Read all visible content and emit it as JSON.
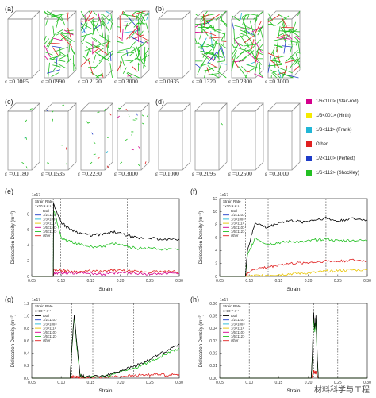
{
  "top_panels": [
    {
      "letter": "(a)",
      "strains": [
        "ε =0.0865",
        "ε =0.0990",
        "ε =0.2120",
        "ε =0.3000"
      ]
    },
    {
      "letter": "(b)",
      "strains": [
        "ε =0.0935",
        "ε =0.1320",
        "ε =0.2300",
        "ε =0.3000"
      ]
    },
    {
      "letter": "(c)",
      "strains": [
        "ε =0.1180",
        "ε =0.1535",
        "ε =0.2230",
        "ε =0.3000"
      ]
    },
    {
      "letter": "(d)",
      "strains": [
        "ε =0.1000",
        "ε =0.2095",
        "ε =0.2500",
        "ε =0.3000"
      ]
    }
  ],
  "dislocation_legend": [
    {
      "label": "1/6<110> (Stair-rod)",
      "color": "#d4008c"
    },
    {
      "label": "1/3<001> (Hirth)",
      "color": "#f5ea00"
    },
    {
      "label": "1/3<111> (Frank)",
      "color": "#21b6d6"
    },
    {
      "label": "Other",
      "color": "#e02020"
    },
    {
      "label": "1/2<110> (Perfect)",
      "color": "#1e3cc8"
    },
    {
      "label": "1/6<112> (Shockley)",
      "color": "#22c022"
    }
  ],
  "charts_common": {
    "multiplier": "1e17",
    "ylabel": "Dislocation Density (m⁻²)",
    "xlabel": "Strain",
    "legend_title": "Strain Rate",
    "legend_subtitle": "1×10⁻⁸ s⁻¹",
    "series_names": [
      "total",
      "1/2<110>",
      "1/3<100>",
      "1/3<111>",
      "1/6<110>",
      "1/6<112>",
      "other"
    ],
    "series_colors": [
      "#000000",
      "#1e3cc8",
      "#21b6d6",
      "#e8c400",
      "#d4008c",
      "#22c022",
      "#e02020"
    ]
  },
  "chart_data": [
    {
      "type": "line",
      "letter": "(e)",
      "xlim": [
        0.05,
        0.3
      ],
      "ylim": [
        0,
        10
      ],
      "yticks": [
        "0",
        "2",
        "4",
        "6",
        "8"
      ],
      "xticks": [
        "0.05",
        "0.10",
        "0.15",
        "0.20",
        "0.25",
        "0.30"
      ],
      "vlines": [
        0.0865,
        0.099,
        0.212
      ],
      "x": [
        0.05,
        0.0865,
        0.087,
        0.1,
        0.11,
        0.13,
        0.15,
        0.17,
        0.19,
        0.21,
        0.23,
        0.25,
        0.27,
        0.3
      ],
      "series": [
        {
          "name": "total",
          "values": [
            0,
            0,
            9.3,
            7.0,
            6.3,
            5.6,
            5.3,
            5.4,
            5.7,
            5.3,
            4.9,
            5.0,
            4.7,
            4.8
          ]
        },
        {
          "name": "1/6<112>",
          "values": [
            0,
            0,
            8.6,
            5.0,
            4.6,
            4.2,
            3.8,
            3.9,
            4.2,
            3.9,
            3.6,
            3.7,
            3.5,
            3.5
          ]
        },
        {
          "name": "other",
          "values": [
            0,
            0,
            0.9,
            0.8,
            0.7,
            0.6,
            0.7,
            0.6,
            0.8,
            0.7,
            0.6,
            0.6,
            0.6,
            0.6
          ]
        },
        {
          "name": "1/6<110>",
          "values": [
            0,
            0,
            0.3,
            0.5,
            0.4,
            0.5,
            0.4,
            0.3,
            0.4,
            0.5,
            0.4,
            0.3,
            0.4,
            0.4
          ]
        }
      ]
    },
    {
      "type": "line",
      "letter": "(f)",
      "xlim": [
        0.05,
        0.3
      ],
      "ylim": [
        0,
        12
      ],
      "yticks": [
        "0",
        "2",
        "4",
        "6",
        "8",
        "10",
        "12"
      ],
      "xticks": [
        "0.05",
        "0.10",
        "0.15",
        "0.20",
        "0.25",
        "0.30"
      ],
      "vlines": [
        0.0935,
        0.132,
        0.23
      ],
      "x": [
        0.05,
        0.0935,
        0.097,
        0.11,
        0.13,
        0.15,
        0.17,
        0.19,
        0.21,
        0.23,
        0.25,
        0.27,
        0.3
      ],
      "series": [
        {
          "name": "total",
          "values": [
            0,
            0,
            4.0,
            8.3,
            7.5,
            8.3,
            8.6,
            8.4,
            8.7,
            9.0,
            8.5,
            8.9,
            8.7
          ]
        },
        {
          "name": "1/6<112>",
          "values": [
            0,
            0,
            3.2,
            6.0,
            5.0,
            5.2,
            5.4,
            5.3,
            5.6,
            5.8,
            5.5,
            5.6,
            5.5
          ]
        },
        {
          "name": "other",
          "values": [
            0,
            0,
            0.5,
            1.2,
            1.4,
            1.8,
            2.0,
            2.1,
            2.2,
            2.4,
            2.3,
            2.5,
            2.4
          ]
        },
        {
          "name": "1/3<111>",
          "values": [
            0,
            0,
            0,
            0.1,
            0.2,
            0.3,
            0.4,
            0.5,
            0.6,
            0.8,
            0.9,
            1.0,
            1.0
          ]
        }
      ]
    },
    {
      "type": "line",
      "letter": "(g)",
      "xlim": [
        0.05,
        0.3
      ],
      "ylim": [
        0,
        1.2
      ],
      "yticks": [
        "0.0",
        "0.2",
        "0.4",
        "0.6",
        "0.8",
        "1.0",
        "1.2"
      ],
      "xticks": [
        "0.05",
        "0.10",
        "0.15",
        "0.20",
        "0.25",
        "0.30"
      ],
      "vlines": [
        0.118,
        0.1535,
        0.223
      ],
      "x": [
        0.05,
        0.115,
        0.118,
        0.122,
        0.126,
        0.132,
        0.14,
        0.16,
        0.18,
        0.2,
        0.22,
        0.24,
        0.26,
        0.28,
        0.3
      ],
      "series": [
        {
          "name": "total",
          "values": [
            0,
            0,
            0.5,
            1.03,
            0.6,
            0.05,
            0.02,
            0.03,
            0.05,
            0.12,
            0.18,
            0.25,
            0.35,
            0.45,
            0.55
          ]
        },
        {
          "name": "1/6<112>",
          "values": [
            0,
            0,
            0.48,
            1.0,
            0.55,
            0.04,
            0.01,
            0.02,
            0.04,
            0.1,
            0.15,
            0.22,
            0.3,
            0.4,
            0.48
          ]
        },
        {
          "name": "other",
          "values": [
            0,
            0,
            0.02,
            0.03,
            0.02,
            0.01,
            0.0,
            0.01,
            0.02,
            0.03,
            0.04,
            0.05,
            0.06,
            0.05,
            0.06
          ]
        }
      ]
    },
    {
      "type": "line",
      "letter": "(h)",
      "xlim": [
        0.05,
        0.3
      ],
      "ylim": [
        0,
        0.06
      ],
      "yticks": [
        "0.00",
        "0.01",
        "0.02",
        "0.03",
        "0.04",
        "0.05",
        "0.06"
      ],
      "xticks": [
        "0.05",
        "0.10",
        "0.15",
        "0.20",
        "0.25",
        "0.30"
      ],
      "vlines": [
        0.1,
        0.2095,
        0.25
      ],
      "x": [
        0.05,
        0.205,
        0.207,
        0.209,
        0.211,
        0.213,
        0.215,
        0.217,
        0.22,
        0.3
      ],
      "series": [
        {
          "name": "total",
          "values": [
            0,
            0,
            0.02,
            0.053,
            0.04,
            0.05,
            0.02,
            0.0,
            0,
            0
          ]
        },
        {
          "name": "1/6<112>",
          "values": [
            0,
            0,
            0.018,
            0.05,
            0.037,
            0.047,
            0.018,
            0.0,
            0,
            0
          ]
        },
        {
          "name": "other",
          "values": [
            0,
            0,
            0.002,
            0.006,
            0.004,
            0.005,
            0.002,
            0.0,
            0,
            0
          ]
        }
      ]
    }
  ],
  "watermark": "材料科学与工程"
}
